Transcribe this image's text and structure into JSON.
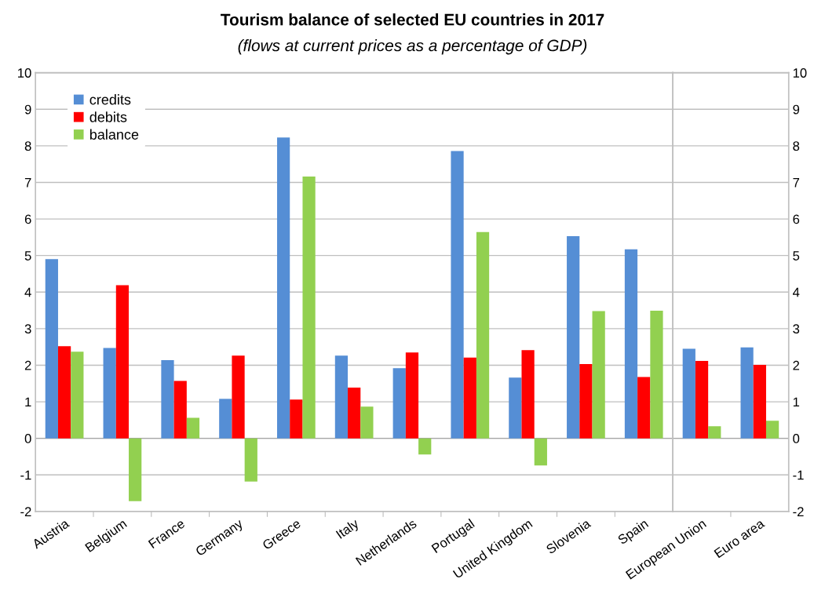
{
  "chart_data": [
    {
      "type": "bar",
      "title": "Tourism balance of selected EU countries in 2017",
      "subtitle": "(flows at current prices as a percentage of GDP)",
      "categories": [
        "Austria",
        "Belgium",
        "France",
        "Germany",
        "Greece",
        "Italy",
        "Netherlands",
        "Portugal",
        "United Kingdom",
        "Slovenia",
        "Spain"
      ],
      "series": [
        {
          "name": "credits",
          "color": "#558ed5",
          "values": [
            4.9,
            2.47,
            2.14,
            1.08,
            8.23,
            2.26,
            1.92,
            7.86,
            1.66,
            5.53,
            5.17
          ]
        },
        {
          "name": "debits",
          "color": "#ff0000",
          "values": [
            2.52,
            4.19,
            1.57,
            2.26,
            1.06,
            1.39,
            2.35,
            2.21,
            2.41,
            2.03,
            1.68
          ]
        },
        {
          "name": "balance",
          "color": "#92d050",
          "values": [
            2.37,
            -1.72,
            0.56,
            -1.18,
            7.16,
            0.87,
            -0.44,
            5.64,
            -0.74,
            3.48,
            3.49
          ]
        }
      ],
      "ylim": [
        -2,
        10
      ],
      "yticks": [
        -2,
        -1,
        0,
        1,
        2,
        3,
        4,
        5,
        6,
        7,
        8,
        9,
        10
      ],
      "grid": "y",
      "legend": "top left"
    },
    {
      "type": "bar",
      "categories": [
        "European Union",
        "Euro area"
      ],
      "series": [
        {
          "color": "#558ed5",
          "values": [
            2.45,
            2.49
          ]
        },
        {
          "color": "#ff0000",
          "values": [
            2.12,
            2.01
          ]
        },
        {
          "color": "#92d050",
          "values": [
            0.33,
            0.48
          ]
        }
      ],
      "ylim": [
        -2,
        10
      ],
      "yticks": [
        -2,
        -1,
        0,
        1,
        2,
        3,
        4,
        5,
        6,
        7,
        8,
        9,
        10
      ],
      "grid": "y"
    }
  ]
}
